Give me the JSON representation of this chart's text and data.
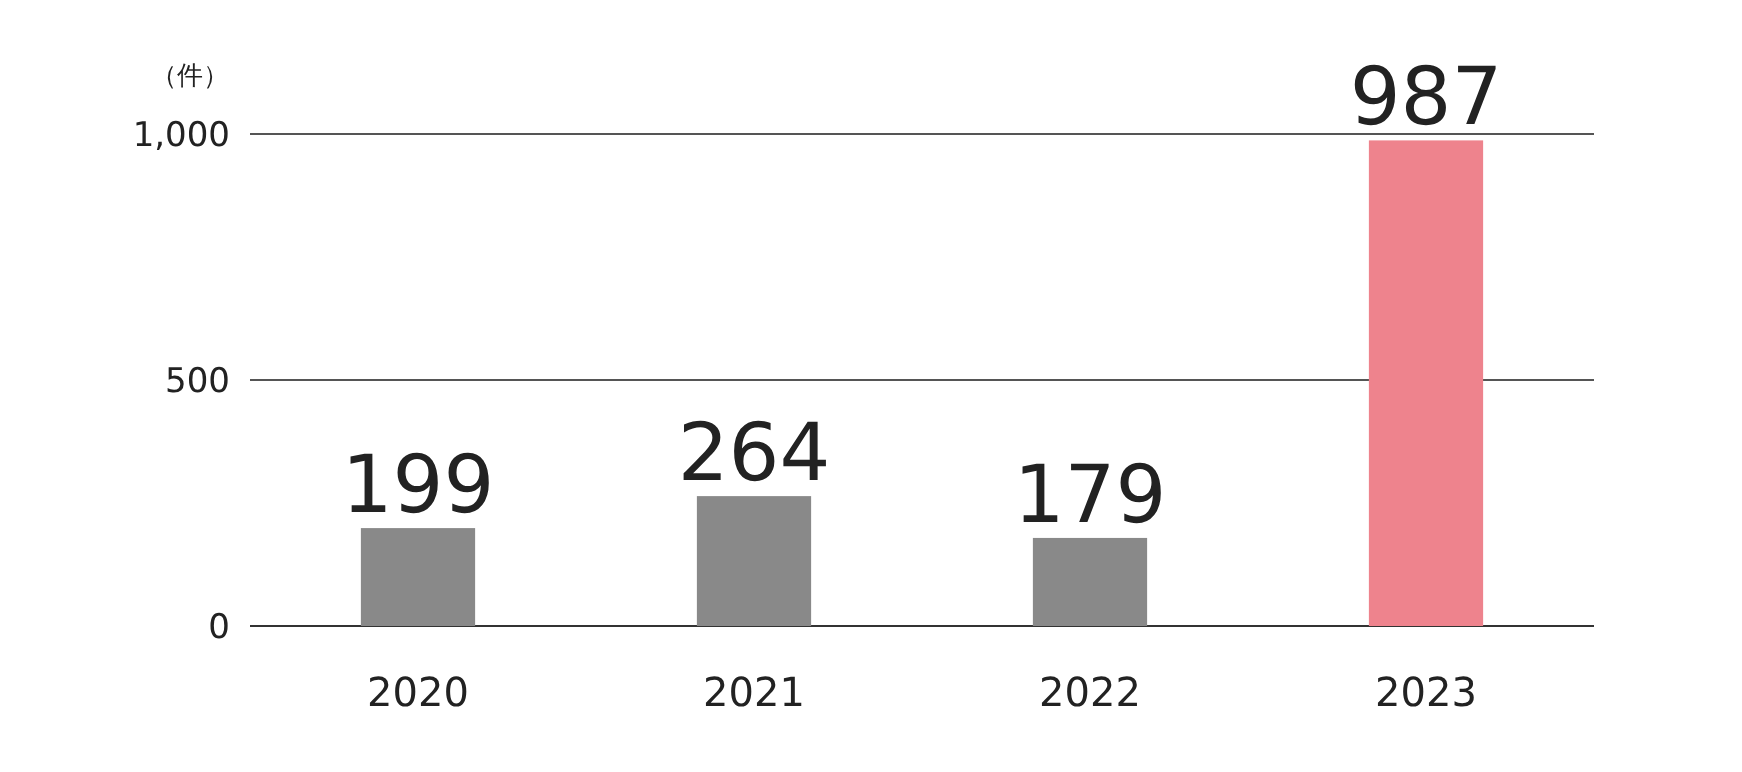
{
  "chart_data": {
    "type": "bar",
    "ylabel": "（件）",
    "categories": [
      "2020",
      "2021",
      "2022",
      "2023"
    ],
    "values": [
      199,
      264,
      179,
      987
    ],
    "colors": [
      "#898989",
      "#898989",
      "#898989",
      "#ee838d"
    ],
    "ylim": [
      0,
      1000
    ],
    "yticks": [
      0,
      500,
      {
        "value": 1000,
        "label": "1,000"
      }
    ],
    "grid": "y",
    "data_labels": true
  }
}
